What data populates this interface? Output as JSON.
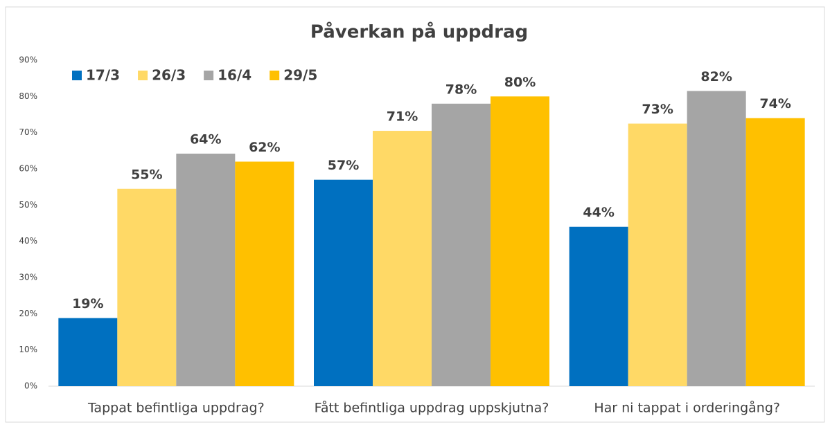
{
  "chart_data": {
    "type": "bar",
    "title": "Påverkan på uppdrag",
    "categories": [
      "Tappat befintliga uppdrag?",
      "Fått befintliga uppdrag uppskjutna?",
      "Har ni tappat i orderingång?"
    ],
    "series": [
      {
        "name": "17/3",
        "color": "#0070c0",
        "values": [
          18.8,
          57,
          44
        ],
        "value_labels": [
          "19%",
          "57%",
          "44%"
        ]
      },
      {
        "name": "26/3",
        "color": "#ffd966",
        "values": [
          54.5,
          70.5,
          72.5
        ],
        "value_labels": [
          "55%",
          "71%",
          "73%"
        ]
      },
      {
        "name": "16/4",
        "color": "#a5a5a5",
        "values": [
          64.2,
          78,
          81.5
        ],
        "value_labels": [
          "64%",
          "78%",
          "82%"
        ]
      },
      {
        "name": "29/5",
        "color": "#ffc000",
        "values": [
          62,
          80,
          74
        ],
        "value_labels": [
          "62%",
          "80%",
          "74%"
        ]
      }
    ],
    "ylim": [
      0,
      90
    ],
    "yticks": [
      {
        "value": 0,
        "label": "0%"
      },
      {
        "value": 10,
        "label": "10%"
      },
      {
        "value": 20,
        "label": "20%"
      },
      {
        "value": 30,
        "label": "30%"
      },
      {
        "value": 40,
        "label": "40%"
      },
      {
        "value": 50,
        "label": "50%"
      },
      {
        "value": 60,
        "label": "60%"
      },
      {
        "value": 70,
        "label": "70%"
      },
      {
        "value": 80,
        "label": "80%"
      },
      {
        "value": 90,
        "label": "90%"
      }
    ],
    "grid": false,
    "legend": "top-left"
  }
}
